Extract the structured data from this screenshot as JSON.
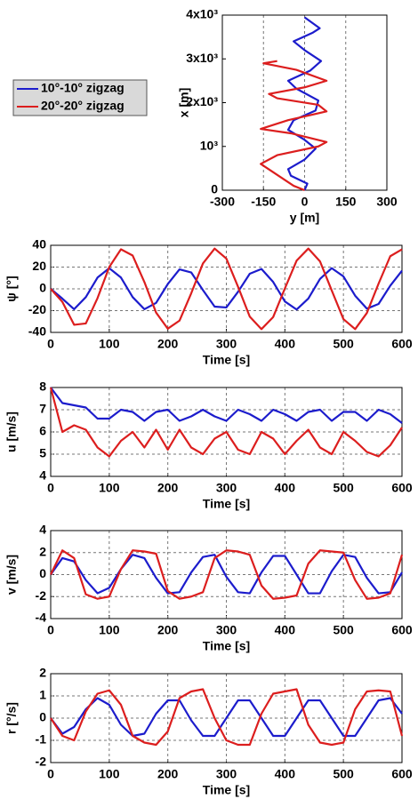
{
  "chart_data": [
    {
      "type": "trajectory",
      "xlabel": "y [m]",
      "ylabel": "x [m]",
      "xlim": [
        -300,
        300
      ],
      "xticks": [
        -300,
        -150,
        0,
        150,
        300
      ],
      "ylim": [
        0,
        4000
      ],
      "yticks": [
        0,
        {
          "value": 1000,
          "label": "10³"
        },
        {
          "value": 2000,
          "label": "2x10³"
        },
        {
          "value": 3000,
          "label": "3x10³"
        },
        {
          "value": 4000,
          "label": "4x10³"
        }
      ],
      "xgrid": true,
      "ygrid": false,
      "legend": "left",
      "series": [
        {
          "name": "10°-10° zigzag",
          "color": "#1c1ccc",
          "x": [
            0,
            10,
            -50,
            -60,
            0,
            40,
            0,
            -60,
            -40,
            40,
            50,
            -30,
            -60,
            20,
            60,
            0,
            -40,
            30,
            55,
            0
          ],
          "values": [
            0,
            150,
            330,
            480,
            700,
            950,
            1150,
            1380,
            1600,
            1820,
            2050,
            2320,
            2500,
            2730,
            2950,
            3200,
            3400,
            3600,
            3700,
            3950
          ]
        },
        {
          "name": "20°-20° zigzag",
          "color": "#dc1e1e",
          "x": [
            0,
            -40,
            -160,
            -100,
            50,
            80,
            -50,
            -160,
            -60,
            80,
            50,
            -100,
            -130,
            0,
            80,
            -30,
            -150,
            -100
          ],
          "values": [
            0,
            100,
            600,
            800,
            1000,
            1100,
            1300,
            1400,
            1600,
            1800,
            1950,
            2100,
            2200,
            2350,
            2500,
            2750,
            2900,
            2950
          ]
        }
      ]
    },
    {
      "type": "line",
      "xlabel": "Time [s]",
      "ylabel": "ψ [°]",
      "xlim": [
        0,
        600
      ],
      "xticks": [
        0,
        100,
        200,
        300,
        400,
        500,
        600
      ],
      "ylim": [
        -40,
        40
      ],
      "yticks": [
        -40,
        -20,
        0,
        20,
        40
      ],
      "xgrid": true,
      "ygrid": true,
      "x": [
        0,
        20,
        40,
        60,
        80,
        100,
        120,
        140,
        160,
        180,
        200,
        220,
        240,
        260,
        280,
        300,
        320,
        340,
        360,
        380,
        400,
        420,
        440,
        460,
        480,
        500,
        520,
        540,
        560,
        580,
        600
      ],
      "series": [
        {
          "color": "#1c1ccc",
          "values": [
            0,
            -9,
            -18.7,
            -7.6,
            10.4,
            19,
            10.4,
            -7.6,
            -18.7,
            -12.9,
            4.4,
            17.9,
            15.1,
            -1.1,
            -16.3,
            -17.1,
            -2.7,
            13.9,
            18.3,
            6.3,
            -11.6,
            -19,
            -8.9,
            9.1,
            19,
            11.4,
            -6.3,
            -18.2,
            -13.9,
            2.9,
            16.7
          ]
        },
        {
          "color": "#dc1e1e",
          "values": [
            0,
            -12,
            -33,
            -31.8,
            -8.5,
            20,
            36.3,
            30.6,
            6.3,
            -21.8,
            -36.6,
            -29.2,
            -4.1,
            23.3,
            37,
            27.8,
            1.9,
            -25.5,
            -37,
            -25.9,
            0.4,
            25.9,
            37,
            25.2,
            -1.5,
            -27.8,
            -37,
            -22.2,
            4.8,
            30,
            36.3
          ]
        }
      ]
    },
    {
      "type": "line",
      "xlabel": "Time [s]",
      "ylabel": "u [m/s]",
      "xlim": [
        0,
        600
      ],
      "xticks": [
        0,
        100,
        200,
        300,
        400,
        500,
        600
      ],
      "ylim": [
        4,
        8
      ],
      "yticks": [
        4,
        5,
        6,
        7,
        8
      ],
      "xgrid": true,
      "ygrid": true,
      "x": [
        0,
        20,
        40,
        60,
        80,
        100,
        120,
        140,
        160,
        180,
        200,
        220,
        240,
        260,
        280,
        300,
        320,
        340,
        360,
        380,
        400,
        420,
        440,
        460,
        480,
        500,
        520,
        540,
        560,
        580,
        600
      ],
      "series": [
        {
          "color": "#1c1ccc",
          "values": [
            8,
            7.3,
            7.2,
            7.1,
            6.6,
            6.6,
            7.0,
            6.9,
            6.5,
            6.9,
            7.0,
            6.5,
            6.7,
            7.0,
            6.7,
            6.5,
            7.0,
            6.8,
            6.5,
            7.0,
            6.8,
            6.5,
            6.9,
            7.0,
            6.5,
            6.9,
            6.9,
            6.5,
            7.0,
            6.8,
            6.4
          ]
        },
        {
          "color": "#dc1e1e",
          "values": [
            8,
            6.0,
            6.3,
            6.1,
            5.3,
            4.9,
            5.6,
            6.0,
            5.3,
            6.1,
            5.2,
            6.1,
            5.3,
            5.0,
            5.7,
            6.0,
            5.2,
            5.0,
            6.0,
            5.7,
            5.0,
            5.6,
            6.1,
            5.3,
            5.0,
            6.0,
            5.6,
            5.1,
            4.9,
            5.4,
            6.2
          ]
        }
      ]
    },
    {
      "type": "line",
      "xlabel": "Time [s]",
      "ylabel": "v [m/s]",
      "xlim": [
        0,
        600
      ],
      "xticks": [
        0,
        100,
        200,
        300,
        400,
        500,
        600
      ],
      "ylim": [
        -4,
        4
      ],
      "yticks": [
        -4,
        -2,
        0,
        2,
        4
      ],
      "xgrid": true,
      "ygrid": true,
      "x": [
        0,
        20,
        40,
        60,
        80,
        100,
        120,
        140,
        160,
        180,
        200,
        220,
        240,
        260,
        280,
        300,
        320,
        340,
        360,
        380,
        400,
        420,
        440,
        460,
        480,
        500,
        520,
        540,
        560,
        580,
        600
      ],
      "series": [
        {
          "color": "#1c1ccc",
          "values": [
            0,
            1.5,
            1.2,
            -0.5,
            -1.7,
            -1.2,
            0.5,
            1.8,
            1.5,
            -0.3,
            -1.7,
            -1.6,
            0.2,
            1.6,
            1.8,
            -0.2,
            -1.6,
            -1.7,
            0.2,
            1.7,
            1.7,
            0,
            -1.7,
            -1.7,
            0.3,
            1.8,
            1.6,
            -0.3,
            -1.7,
            -1.6,
            0.2
          ]
        },
        {
          "color": "#dc1e1e",
          "values": [
            0,
            2.2,
            1.5,
            -1.8,
            -2.2,
            -2.0,
            0.5,
            2.2,
            2.1,
            1.9,
            -1.5,
            -2.2,
            -2.0,
            -1.6,
            1.5,
            2.2,
            2.1,
            1.8,
            -1.0,
            -2.2,
            -2.1,
            -1.9,
            1.0,
            2.2,
            2.1,
            2.0,
            -0.5,
            -2.2,
            -2.1,
            -1.7,
            1.8
          ]
        }
      ]
    },
    {
      "type": "line",
      "xlabel": "Time [s]",
      "ylabel": "r [°/s]",
      "xlim": [
        0,
        600
      ],
      "xticks": [
        0,
        100,
        200,
        300,
        400,
        500,
        600
      ],
      "ylim": [
        -2,
        2
      ],
      "yticks": [
        -2,
        -1,
        0,
        1,
        2
      ],
      "xgrid": true,
      "ygrid": true,
      "x": [
        0,
        20,
        40,
        60,
        80,
        100,
        120,
        140,
        160,
        180,
        200,
        220,
        240,
        260,
        280,
        300,
        320,
        340,
        360,
        380,
        400,
        420,
        440,
        460,
        480,
        500,
        520,
        540,
        560,
        580,
        600
      ],
      "series": [
        {
          "color": "#1c1ccc",
          "values": [
            0,
            -0.7,
            -0.4,
            0.4,
            0.9,
            0.6,
            -0.3,
            -0.8,
            -0.7,
            0.2,
            0.8,
            0.8,
            -0.1,
            -0.8,
            -0.8,
            0,
            0.8,
            0.8,
            0,
            -0.8,
            -0.8,
            0,
            0.8,
            0.8,
            0,
            -0.8,
            -0.8,
            0,
            0.8,
            0.9,
            0.2
          ]
        },
        {
          "color": "#dc1e1e",
          "values": [
            0,
            -0.8,
            -1.0,
            0.3,
            1.1,
            1.25,
            0.6,
            -0.8,
            -1.1,
            -1.2,
            -0.6,
            0.9,
            1.2,
            1.3,
            0,
            -1.0,
            -1.2,
            -1.2,
            0.2,
            1.1,
            1.2,
            1.3,
            -0.3,
            -1.1,
            -1.2,
            -1.1,
            0.4,
            1.2,
            1.25,
            1.2,
            -0.8
          ]
        }
      ]
    }
  ]
}
